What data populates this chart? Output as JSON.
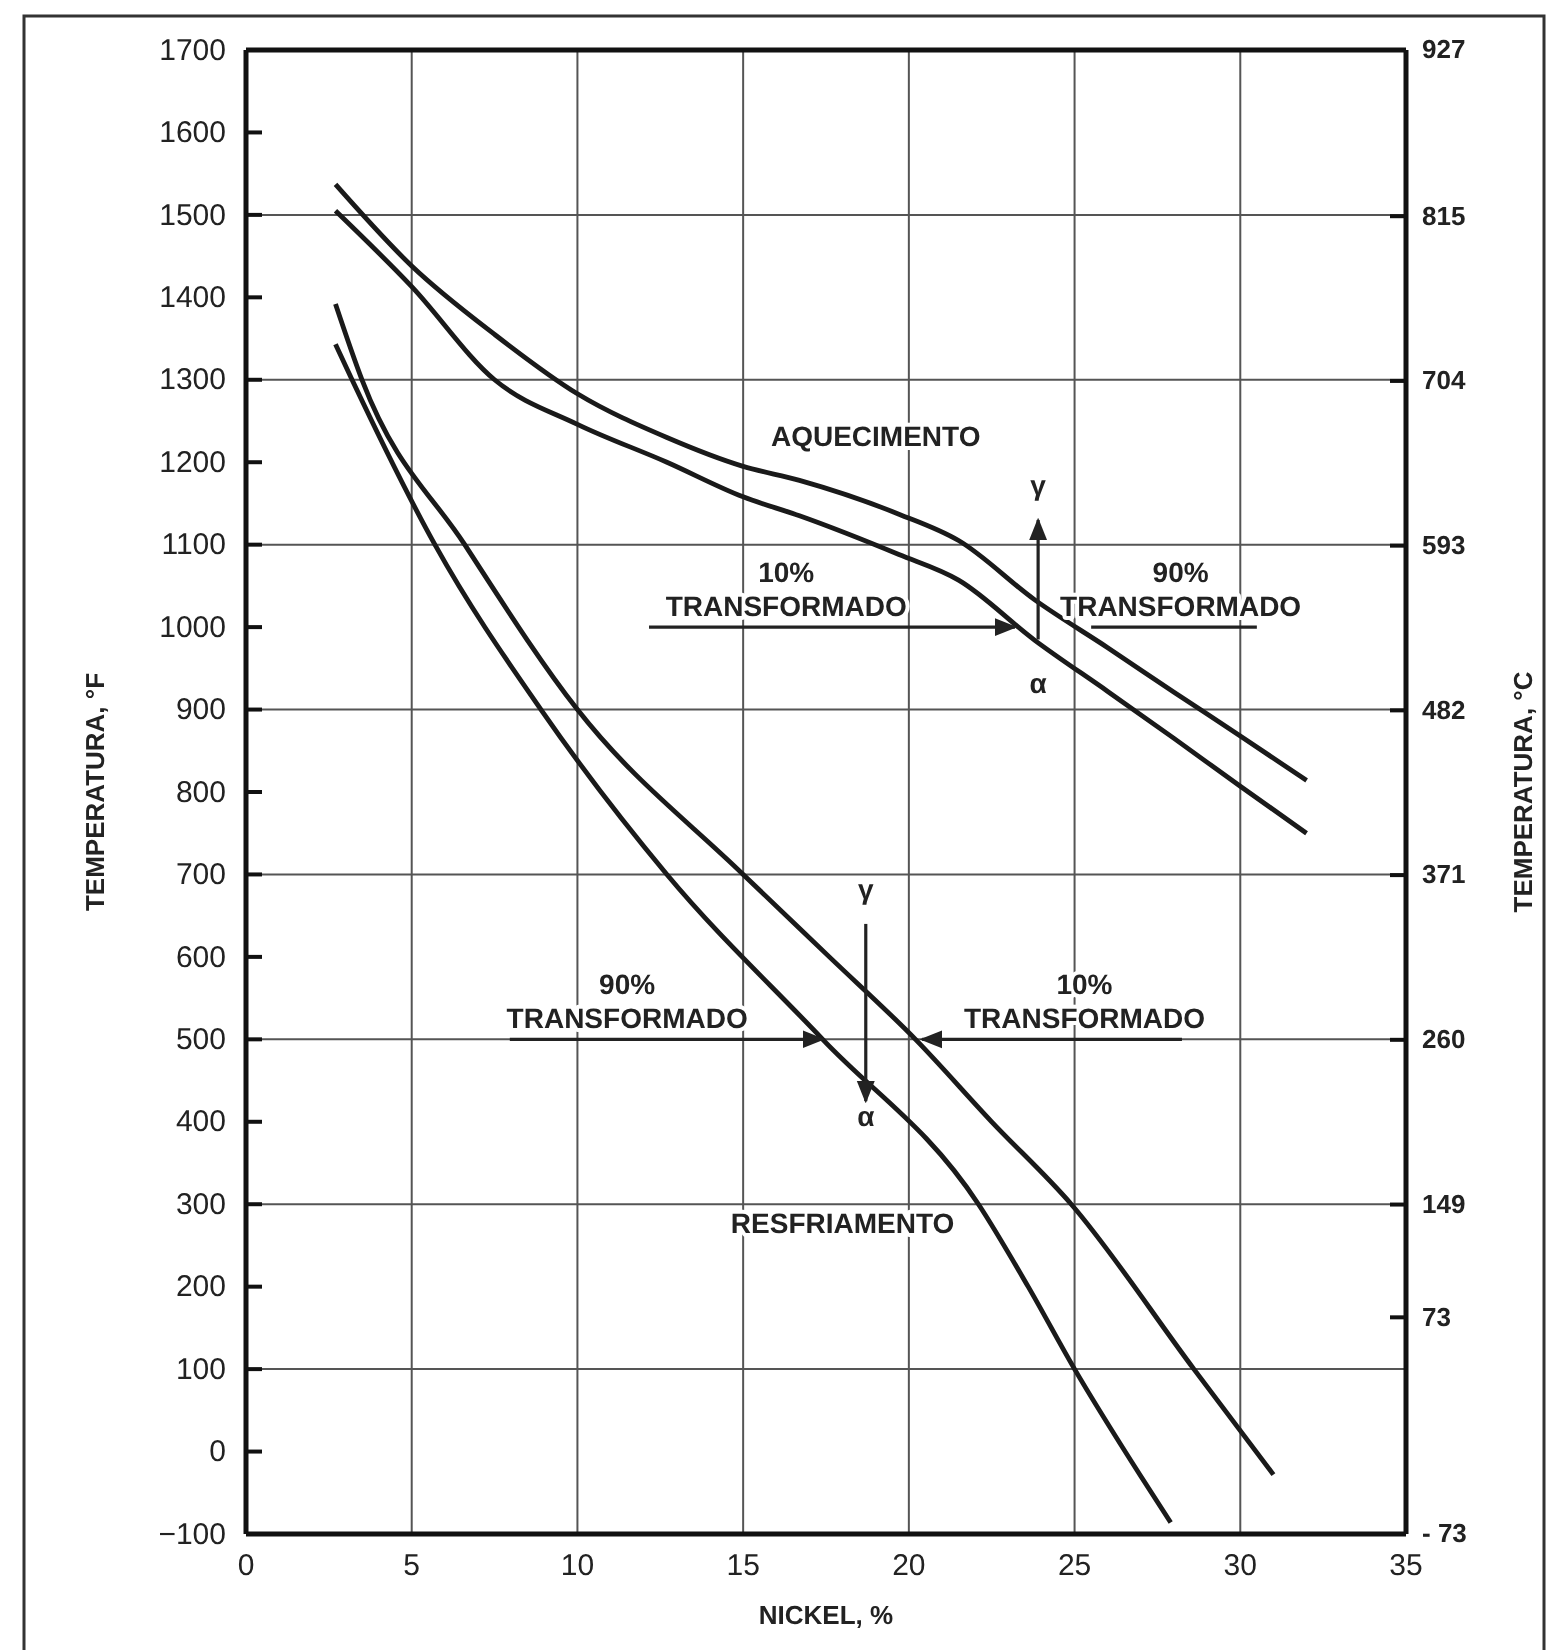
{
  "chart_data": {
    "type": "line",
    "xlabel": "NICKEL, %",
    "ylabel": "TEMPERATURA, °F",
    "y2label": "TEMPERATURA, °C",
    "xlim": [
      0,
      35
    ],
    "xticks": [
      0,
      5,
      10,
      15,
      20,
      25,
      30,
      35
    ],
    "ylim": [
      -100,
      1700
    ],
    "yticks": [
      -100,
      0,
      100,
      200,
      300,
      400,
      500,
      600,
      700,
      800,
      900,
      1000,
      1100,
      1200,
      1300,
      1400,
      1500,
      1600,
      1700
    ],
    "y2lim": [
      -73,
      927
    ],
    "y2ticks": [
      927,
      815,
      704,
      593,
      482,
      371,
      260,
      149,
      73,
      {
        "value": -73,
        "label": "- 73"
      }
    ],
    "grid": true,
    "line_style": "solid",
    "marker": "none",
    "series": [
      {
        "color": "#1a1a1a",
        "x": [
          2.7,
          5,
          7.5,
          10,
          12.7,
          15,
          16.7,
          19.7,
          21.5,
          23.8,
          26,
          28,
          30,
          32
        ],
        "values": [
          1537,
          1438,
          1355,
          1283,
          1230,
          1195,
          1178,
          1137,
          1105,
          1033,
          975,
          921,
          868,
          814
        ]
      },
      {
        "color": "#1a1a1a",
        "x": [
          2.7,
          5,
          7.5,
          10,
          12.7,
          15,
          16.7,
          19.7,
          21.5,
          23.8,
          26,
          28,
          30,
          32
        ],
        "values": [
          1505,
          1413,
          1300,
          1246,
          1200,
          1158,
          1135,
          1088,
          1057,
          984,
          922,
          865,
          807,
          750
        ]
      },
      {
        "color": "#1a1a1a",
        "x": [
          2.7,
          3.5,
          6.6,
          10,
          15,
          17.6,
          20.2,
          22.5,
          24.9,
          28.6,
          31
        ],
        "values": [
          1392,
          1300,
          1100,
          900,
          700,
          600,
          500,
          400,
          300,
          100,
          -28
        ]
      },
      {
        "color": "#1a1a1a",
        "x": [
          2.7,
          3.2,
          5.7,
          8.9,
          12.7,
          17.4,
          22.1,
          23.6,
          25,
          27,
          27.9
        ],
        "values": [
          1343,
          1300,
          1100,
          900,
          700,
          500,
          300,
          200,
          100,
          -30,
          -86
        ]
      }
    ],
    "annotations": [
      "AQUECIMENTO",
      {
        "text": "10%\nTRANSFORMADO",
        "x": 23.2,
        "y": 1000
      },
      "90%\nTRANSFORMADO",
      "γ",
      "α",
      {
        "text": "90%\nTRANSFORMADO",
        "x": 17.4,
        "y": 500
      },
      {
        "text": "10%\nTRANSFORMADO",
        "x": 20.4,
        "y": 500
      },
      "γ",
      "α",
      "RESFRIAMENTO"
    ]
  }
}
